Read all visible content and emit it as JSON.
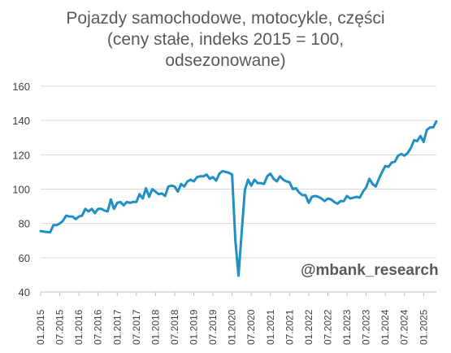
{
  "chart_data": {
    "type": "line",
    "title_lines": [
      "Pojazdy samochodowe,  motocykle, części",
      "(ceny stałe, indeks 2015 = 100,",
      "odsezonowane)"
    ],
    "xlabel": "",
    "ylabel": "",
    "ylim": [
      40,
      160
    ],
    "yticks": [
      40,
      60,
      80,
      100,
      120,
      140,
      160
    ],
    "grid": "horizontal",
    "xtick_labels": [
      "01.2015",
      "07.2015",
      "01.2016",
      "07.2016",
      "01.2017",
      "07.2017",
      "01.2018",
      "07.2018",
      "01.2019",
      "07.2019",
      "01.2020",
      "07.2020",
      "01.2021",
      "07.2021",
      "01.2022",
      "07.2022",
      "01.2023",
      "07.2023",
      "01.2024",
      "07.2024",
      "01.2025"
    ],
    "start": "01.2015",
    "line_color": "#1f8fc4",
    "series": [
      {
        "values": [
          75.5,
          75.2,
          75.0,
          74.8,
          79.0,
          79.0,
          80.0,
          81.5,
          84.5,
          84.0,
          84.0,
          82.5,
          84.0,
          84.5,
          88.5,
          87.0,
          88.5,
          86.0,
          88.5,
          88.5,
          87.5,
          87.0,
          94.0,
          88.5,
          92.0,
          92.5,
          90.5,
          92.5,
          92.0,
          92.5,
          92.5,
          97.0,
          94.5,
          100.5,
          95.5,
          100.0,
          98.5,
          97.0,
          97.5,
          96.0,
          101.5,
          102.0,
          101.5,
          98.5,
          103.0,
          101.5,
          104.5,
          105.5,
          104.5,
          107.0,
          107.5,
          107.5,
          108.5,
          106.0,
          107.0,
          105.0,
          109.0,
          110.5,
          110.0,
          109.5,
          108.5,
          70.5,
          49.5,
          75.0,
          99.5,
          105.5,
          102.0,
          105.5,
          103.5,
          103.5,
          103.0,
          107.5,
          109.0,
          106.0,
          104.5,
          107.5,
          105.5,
          104.5,
          104.0,
          100.0,
          100.5,
          98.0,
          96.5,
          96.5,
          92.0,
          95.5,
          96.0,
          95.5,
          94.5,
          93.0,
          94.5,
          94.0,
          92.5,
          91.5,
          93.0,
          93.0,
          96.0,
          94.5,
          95.0,
          95.5,
          95.0,
          98.5,
          101.0,
          106.0,
          103.0,
          101.5,
          106.0,
          110.0,
          113.5,
          113.0,
          115.5,
          116.0,
          119.5,
          120.5,
          119.5,
          121.0,
          124.0,
          128.5,
          128.0,
          131.0,
          127.5,
          134.5,
          136.0,
          136.0,
          139.5
        ]
      }
    ],
    "watermark": "@mbank_research"
  }
}
